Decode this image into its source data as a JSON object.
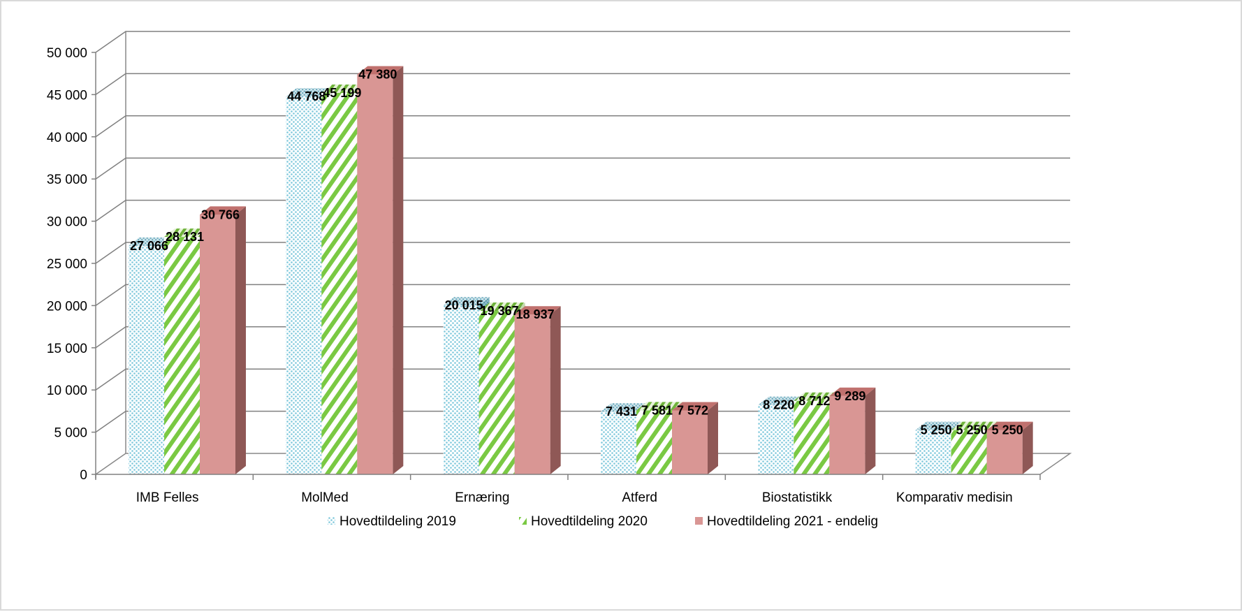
{
  "chart_data": {
    "type": "bar",
    "title": "",
    "xlabel": "",
    "ylabel": "",
    "ylim": [
      0,
      50000
    ],
    "yticks": [
      0,
      5000,
      10000,
      15000,
      20000,
      25000,
      30000,
      35000,
      40000,
      45000,
      50000
    ],
    "ytick_labels": [
      "0",
      "5 000",
      "10 000",
      "15 000",
      "20 000",
      "25 000",
      "30 000",
      "35 000",
      "40 000",
      "45 000",
      "50 000"
    ],
    "grid": true,
    "legend_position": "bottom",
    "categories": [
      "IMB Felles",
      "MolMed",
      "Ernæring",
      "Atferd",
      "Biostatistikk",
      "Komparativ medisin"
    ],
    "series": [
      {
        "name": "Hovedtildeling 2019",
        "values": [
          27066,
          44768,
          20015,
          7431,
          8220,
          5250
        ],
        "labels": [
          "27 066",
          "44 768",
          "20 015",
          "7 431",
          "8 220",
          "5 250"
        ],
        "color": "#a8dcea",
        "pattern": "dots"
      },
      {
        "name": "Hovedtildeling 2020",
        "values": [
          28131,
          45199,
          19367,
          7581,
          8712,
          5250
        ],
        "labels": [
          "28 131",
          "45 199",
          "19 367",
          "7 581",
          "8 712",
          "5 250"
        ],
        "color": "#7ac943",
        "pattern": "diagonal-stripes"
      },
      {
        "name": "Hovedtildeling 2021 - endelig",
        "values": [
          30766,
          47380,
          18937,
          7572,
          9289,
          5250
        ],
        "labels": [
          "30 766",
          "47 380",
          "18 937",
          "7 572",
          "9 289",
          "5 250"
        ],
        "color": "#d99694",
        "pattern": "solid"
      }
    ]
  }
}
